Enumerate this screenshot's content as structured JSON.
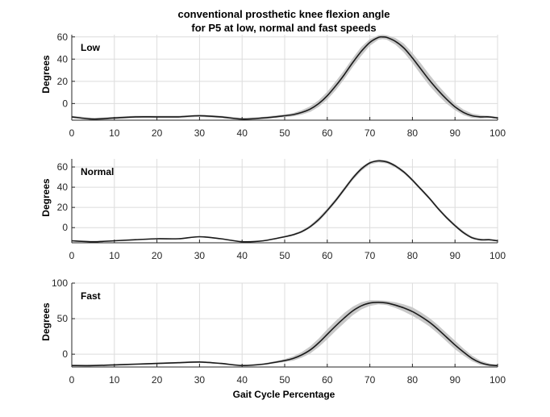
{
  "title_line1": "conventional prosthetic knee flexion angle",
  "title_line2": "for P5 at low, normal and fast speeds",
  "xlabel": "Gait Cycle Percentage",
  "chart_data": [
    {
      "type": "line",
      "label": "Low",
      "ylabel": "Degrees",
      "xlim": [
        0,
        100
      ],
      "ylim": [
        -15,
        62
      ],
      "xticks": [
        0,
        10,
        20,
        30,
        40,
        50,
        60,
        70,
        80,
        90,
        100
      ],
      "yticks": [
        0,
        20,
        40,
        60
      ],
      "grid": true,
      "x": [
        0,
        5,
        10,
        15,
        20,
        25,
        30,
        35,
        40,
        45,
        50,
        52,
        54,
        56,
        58,
        60,
        62,
        64,
        66,
        68,
        70,
        72,
        73,
        74,
        76,
        78,
        80,
        82,
        84,
        86,
        88,
        90,
        92,
        94,
        96,
        98,
        100
      ],
      "series": [
        {
          "values": [
            -12,
            -14,
            -13,
            -12,
            -12,
            -12,
            -11,
            -12,
            -14,
            -13,
            -11,
            -10,
            -8,
            -5,
            0,
            7,
            16,
            26,
            37,
            47,
            55,
            59.5,
            60,
            59.5,
            56,
            50,
            41,
            31,
            21,
            12,
            4,
            -3,
            -8,
            -11,
            -12,
            -12,
            -13
          ]
        }
      ],
      "band": {
        "half_width": [
          1,
          1,
          1,
          1,
          1,
          1,
          1,
          1,
          1,
          1,
          1.2,
          1.5,
          2,
          2.5,
          3,
          3.5,
          4,
          4,
          4,
          4,
          3,
          2,
          2,
          2,
          3,
          4,
          4.5,
          5,
          5,
          4.5,
          4,
          3,
          2.5,
          2,
          1.5,
          1,
          1
        ]
      }
    },
    {
      "type": "line",
      "label": "Normal",
      "ylabel": "Degrees",
      "xlim": [
        0,
        100
      ],
      "ylim": [
        -15,
        68
      ],
      "xticks": [
        0,
        10,
        20,
        30,
        40,
        50,
        60,
        70,
        80,
        90,
        100
      ],
      "yticks": [
        0,
        20,
        40,
        60
      ],
      "grid": true,
      "x": [
        0,
        5,
        10,
        15,
        20,
        25,
        30,
        35,
        40,
        45,
        50,
        52,
        54,
        56,
        58,
        60,
        62,
        64,
        66,
        68,
        70,
        72,
        74,
        76,
        78,
        80,
        82,
        84,
        86,
        88,
        90,
        92,
        94,
        96,
        98,
        100
      ],
      "series": [
        {
          "values": [
            -13,
            -14,
            -13,
            -12,
            -11,
            -11,
            -9,
            -11,
            -14,
            -13,
            -9,
            -7,
            -4,
            1,
            8,
            17,
            27,
            38,
            49,
            58,
            64,
            66,
            65,
            61,
            55,
            47,
            38,
            29,
            19,
            10,
            2,
            -5,
            -10,
            -12,
            -12,
            -13
          ]
        }
      ],
      "band": {
        "half_width": [
          0.5,
          0.5,
          0.5,
          0.5,
          0.5,
          0.5,
          0.5,
          0.5,
          0.5,
          0.5,
          0.8,
          1,
          1.2,
          1.5,
          2,
          2,
          2,
          2,
          2,
          2,
          1.5,
          1.5,
          1.5,
          1.5,
          1.5,
          1.5,
          1.5,
          1.5,
          1.5,
          1.5,
          1.5,
          1.5,
          1.2,
          1,
          0.8,
          0.5
        ]
      }
    },
    {
      "type": "line",
      "label": "Fast",
      "ylabel": "Degrees",
      "xlim": [
        0,
        100
      ],
      "ylim": [
        -18,
        100
      ],
      "xticks": [
        0,
        10,
        20,
        30,
        40,
        50,
        60,
        70,
        80,
        90,
        100
      ],
      "yticks": [
        0,
        50,
        100
      ],
      "ytick_labels": [
        "0",
        "50",
        "100"
      ],
      "grid": true,
      "x": [
        0,
        5,
        10,
        15,
        20,
        25,
        30,
        35,
        40,
        45,
        50,
        52,
        54,
        56,
        58,
        60,
        62,
        64,
        66,
        68,
        70,
        72,
        74,
        76,
        78,
        80,
        82,
        84,
        86,
        88,
        90,
        92,
        94,
        96,
        98,
        100
      ],
      "series": [
        {
          "values": [
            -16,
            -16,
            -15,
            -14,
            -13,
            -12,
            -11,
            -13,
            -16,
            -14,
            -9,
            -6,
            -1,
            6,
            16,
            28,
            40,
            51,
            61,
            68,
            72,
            73,
            72,
            69,
            65,
            60,
            53,
            45,
            35,
            24,
            13,
            3,
            -6,
            -12,
            -15,
            -16
          ]
        }
      ],
      "band": {
        "half_width": [
          1,
          1,
          1,
          1,
          1,
          1,
          1,
          1,
          1,
          1,
          2,
          3,
          4,
          5,
          6,
          7,
          7,
          7,
          6,
          5,
          4,
          3,
          3,
          4,
          5,
          6,
          6,
          6,
          6,
          6,
          6,
          5,
          4,
          3,
          2,
          1
        ]
      }
    }
  ]
}
